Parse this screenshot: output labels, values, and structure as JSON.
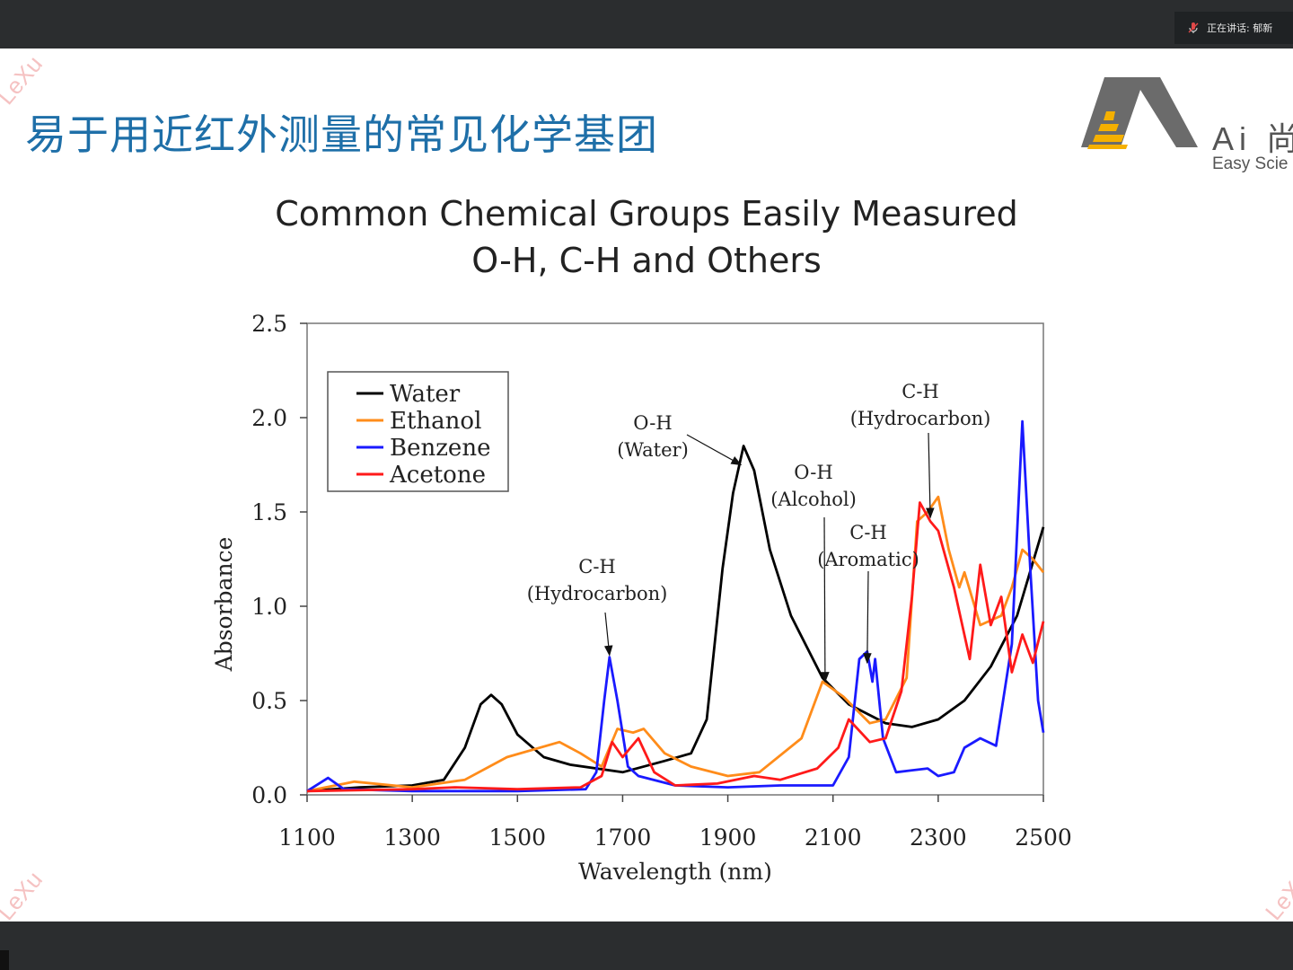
{
  "slide": {
    "title": "易于用近红外测量的常见化学基团",
    "speaker_badge": "正在讲话: 郁新",
    "logo_text": "Ai 尚",
    "logo_subtext": "Easy Scie",
    "watermark": "LeXu"
  },
  "colors": {
    "title_blue": "#1e6fa8",
    "water": "#000000",
    "ethanol": "#ff8c1a",
    "benzene": "#1a1aff",
    "acetone": "#ff1a1a",
    "logo_yellow": "#f5b000",
    "logo_gray": "#6b6b6b"
  },
  "chart_data": {
    "type": "line",
    "title": "Common Chemical Groups Easily Measured",
    "subtitle": "O-H, C-H and Others",
    "xlabel": "Wavelength (nm)",
    "ylabel": "Absorbance",
    "xlim": [
      1100,
      2500
    ],
    "ylim": [
      0,
      2.5
    ],
    "xticks": [
      "1100",
      "1300",
      "1500",
      "1700",
      "1900",
      "2100",
      "2300",
      "2500"
    ],
    "yticks": [
      "0.0",
      "0.5",
      "1.0",
      "1.5",
      "2.0",
      "2.5"
    ],
    "legend_position": "top-left",
    "series": [
      {
        "name": "Water",
        "color_key": "water",
        "points": [
          [
            1100,
            0.02
          ],
          [
            1200,
            0.04
          ],
          [
            1300,
            0.05
          ],
          [
            1360,
            0.08
          ],
          [
            1400,
            0.25
          ],
          [
            1430,
            0.48
          ],
          [
            1450,
            0.53
          ],
          [
            1470,
            0.48
          ],
          [
            1500,
            0.32
          ],
          [
            1550,
            0.2
          ],
          [
            1600,
            0.16
          ],
          [
            1700,
            0.12
          ],
          [
            1780,
            0.18
          ],
          [
            1830,
            0.22
          ],
          [
            1860,
            0.4
          ],
          [
            1890,
            1.2
          ],
          [
            1910,
            1.6
          ],
          [
            1930,
            1.85
          ],
          [
            1950,
            1.72
          ],
          [
            1980,
            1.3
          ],
          [
            2020,
            0.95
          ],
          [
            2080,
            0.62
          ],
          [
            2130,
            0.48
          ],
          [
            2200,
            0.38
          ],
          [
            2250,
            0.36
          ],
          [
            2300,
            0.4
          ],
          [
            2350,
            0.5
          ],
          [
            2400,
            0.68
          ],
          [
            2450,
            0.95
          ],
          [
            2500,
            1.42
          ]
        ]
      },
      {
        "name": "Ethanol",
        "color_key": "ethanol",
        "points": [
          [
            1100,
            0.02
          ],
          [
            1190,
            0.07
          ],
          [
            1300,
            0.04
          ],
          [
            1400,
            0.08
          ],
          [
            1480,
            0.2
          ],
          [
            1580,
            0.28
          ],
          [
            1620,
            0.22
          ],
          [
            1660,
            0.15
          ],
          [
            1690,
            0.35
          ],
          [
            1720,
            0.33
          ],
          [
            1740,
            0.35
          ],
          [
            1780,
            0.22
          ],
          [
            1830,
            0.15
          ],
          [
            1900,
            0.1
          ],
          [
            1960,
            0.12
          ],
          [
            2040,
            0.3
          ],
          [
            2080,
            0.6
          ],
          [
            2120,
            0.52
          ],
          [
            2170,
            0.38
          ],
          [
            2200,
            0.4
          ],
          [
            2240,
            0.62
          ],
          [
            2260,
            1.45
          ],
          [
            2280,
            1.5
          ],
          [
            2300,
            1.58
          ],
          [
            2320,
            1.3
          ],
          [
            2340,
            1.1
          ],
          [
            2350,
            1.18
          ],
          [
            2380,
            0.9
          ],
          [
            2420,
            0.95
          ],
          [
            2440,
            1.1
          ],
          [
            2460,
            1.3
          ],
          [
            2480,
            1.25
          ],
          [
            2500,
            1.18
          ]
        ]
      },
      {
        "name": "Benzene",
        "color_key": "benzene",
        "points": [
          [
            1100,
            0.02
          ],
          [
            1140,
            0.09
          ],
          [
            1170,
            0.03
          ],
          [
            1300,
            0.02
          ],
          [
            1500,
            0.02
          ],
          [
            1630,
            0.03
          ],
          [
            1650,
            0.12
          ],
          [
            1665,
            0.5
          ],
          [
            1675,
            0.73
          ],
          [
            1690,
            0.5
          ],
          [
            1710,
            0.15
          ],
          [
            1730,
            0.1
          ],
          [
            1800,
            0.05
          ],
          [
            1900,
            0.04
          ],
          [
            2000,
            0.05
          ],
          [
            2100,
            0.05
          ],
          [
            2130,
            0.2
          ],
          [
            2150,
            0.72
          ],
          [
            2165,
            0.76
          ],
          [
            2175,
            0.6
          ],
          [
            2180,
            0.72
          ],
          [
            2195,
            0.3
          ],
          [
            2220,
            0.12
          ],
          [
            2280,
            0.14
          ],
          [
            2300,
            0.1
          ],
          [
            2330,
            0.12
          ],
          [
            2350,
            0.25
          ],
          [
            2380,
            0.3
          ],
          [
            2410,
            0.26
          ],
          [
            2440,
            0.8
          ],
          [
            2460,
            1.98
          ],
          [
            2475,
            1.2
          ],
          [
            2490,
            0.5
          ],
          [
            2500,
            0.33
          ]
        ]
      },
      {
        "name": "Acetone",
        "color_key": "acetone",
        "points": [
          [
            1100,
            0.02
          ],
          [
            1300,
            0.03
          ],
          [
            1380,
            0.04
          ],
          [
            1500,
            0.03
          ],
          [
            1620,
            0.04
          ],
          [
            1660,
            0.1
          ],
          [
            1680,
            0.28
          ],
          [
            1700,
            0.2
          ],
          [
            1730,
            0.3
          ],
          [
            1760,
            0.12
          ],
          [
            1800,
            0.05
          ],
          [
            1880,
            0.06
          ],
          [
            1950,
            0.1
          ],
          [
            2000,
            0.08
          ],
          [
            2070,
            0.14
          ],
          [
            2110,
            0.25
          ],
          [
            2130,
            0.4
          ],
          [
            2170,
            0.28
          ],
          [
            2200,
            0.3
          ],
          [
            2230,
            0.55
          ],
          [
            2250,
            1.05
          ],
          [
            2265,
            1.55
          ],
          [
            2285,
            1.45
          ],
          [
            2300,
            1.4
          ],
          [
            2330,
            1.1
          ],
          [
            2360,
            0.72
          ],
          [
            2380,
            1.22
          ],
          [
            2400,
            0.9
          ],
          [
            2420,
            1.05
          ],
          [
            2440,
            0.65
          ],
          [
            2460,
            0.85
          ],
          [
            2480,
            0.7
          ],
          [
            2500,
            0.92
          ]
        ]
      }
    ],
    "annotations": [
      {
        "label": "C-H",
        "sub": "(Hydrocarbon)",
        "target": [
          1675,
          0.74
        ]
      },
      {
        "label": "O-H",
        "sub": "(Water)",
        "target": [
          1925,
          1.75
        ]
      },
      {
        "label": "O-H",
        "sub": "(Alcohol)",
        "target": [
          2085,
          0.6
        ]
      },
      {
        "label": "C-H",
        "sub": "(Aromatic)",
        "target": [
          2165,
          0.7
        ]
      },
      {
        "label": "C-H",
        "sub": "(Hydrocarbon)",
        "target": [
          2285,
          1.47
        ]
      }
    ]
  }
}
